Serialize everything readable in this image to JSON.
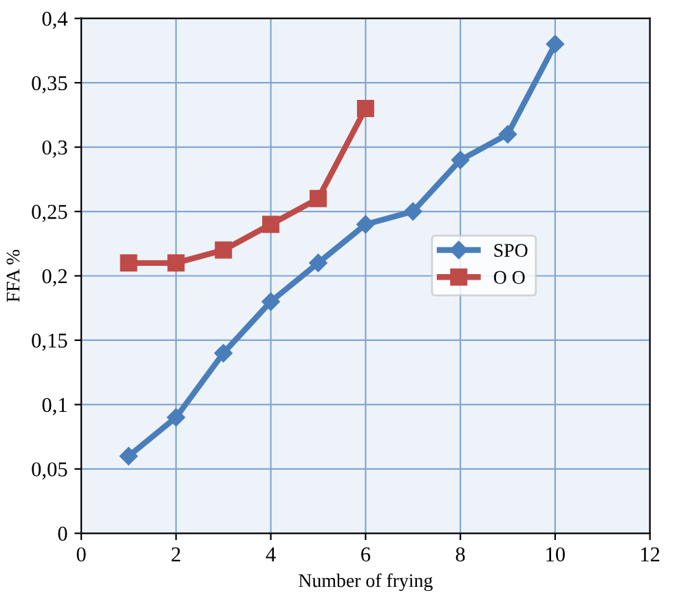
{
  "chart_data": {
    "type": "line",
    "xlabel": "Number of frying",
    "ylabel": "FFA %",
    "x": [
      1,
      2,
      3,
      4,
      5,
      6,
      7,
      8,
      9,
      10
    ],
    "series": [
      {
        "name": "SPO",
        "color": "#4a7ebb",
        "marker": "diamond",
        "values": [
          0.06,
          0.09,
          0.14,
          0.18,
          0.21,
          0.24,
          0.25,
          0.29,
          0.31,
          0.38
        ]
      },
      {
        "name": "O O",
        "color": "#be4b48",
        "marker": "square",
        "values": [
          0.21,
          0.21,
          0.22,
          0.24,
          0.26,
          0.33,
          null,
          null,
          null,
          null
        ]
      }
    ],
    "xlim": [
      0,
      12
    ],
    "xticks": [
      0,
      2,
      4,
      6,
      8,
      10,
      12
    ],
    "ylim": [
      0,
      0.4
    ],
    "yticks": [
      {
        "value": 0,
        "label": "0"
      },
      {
        "value": 0.05,
        "label": "0,05"
      },
      {
        "value": 0.1,
        "label": "0,1"
      },
      {
        "value": 0.15,
        "label": "0,15"
      },
      {
        "value": 0.2,
        "label": "0,2"
      },
      {
        "value": 0.25,
        "label": "0,25"
      },
      {
        "value": 0.3,
        "label": "0,3"
      },
      {
        "value": 0.35,
        "label": "0,35"
      },
      {
        "value": 0.4,
        "label": "0,4"
      }
    ],
    "grid": true,
    "legend": "right",
    "line_style": "solid"
  }
}
